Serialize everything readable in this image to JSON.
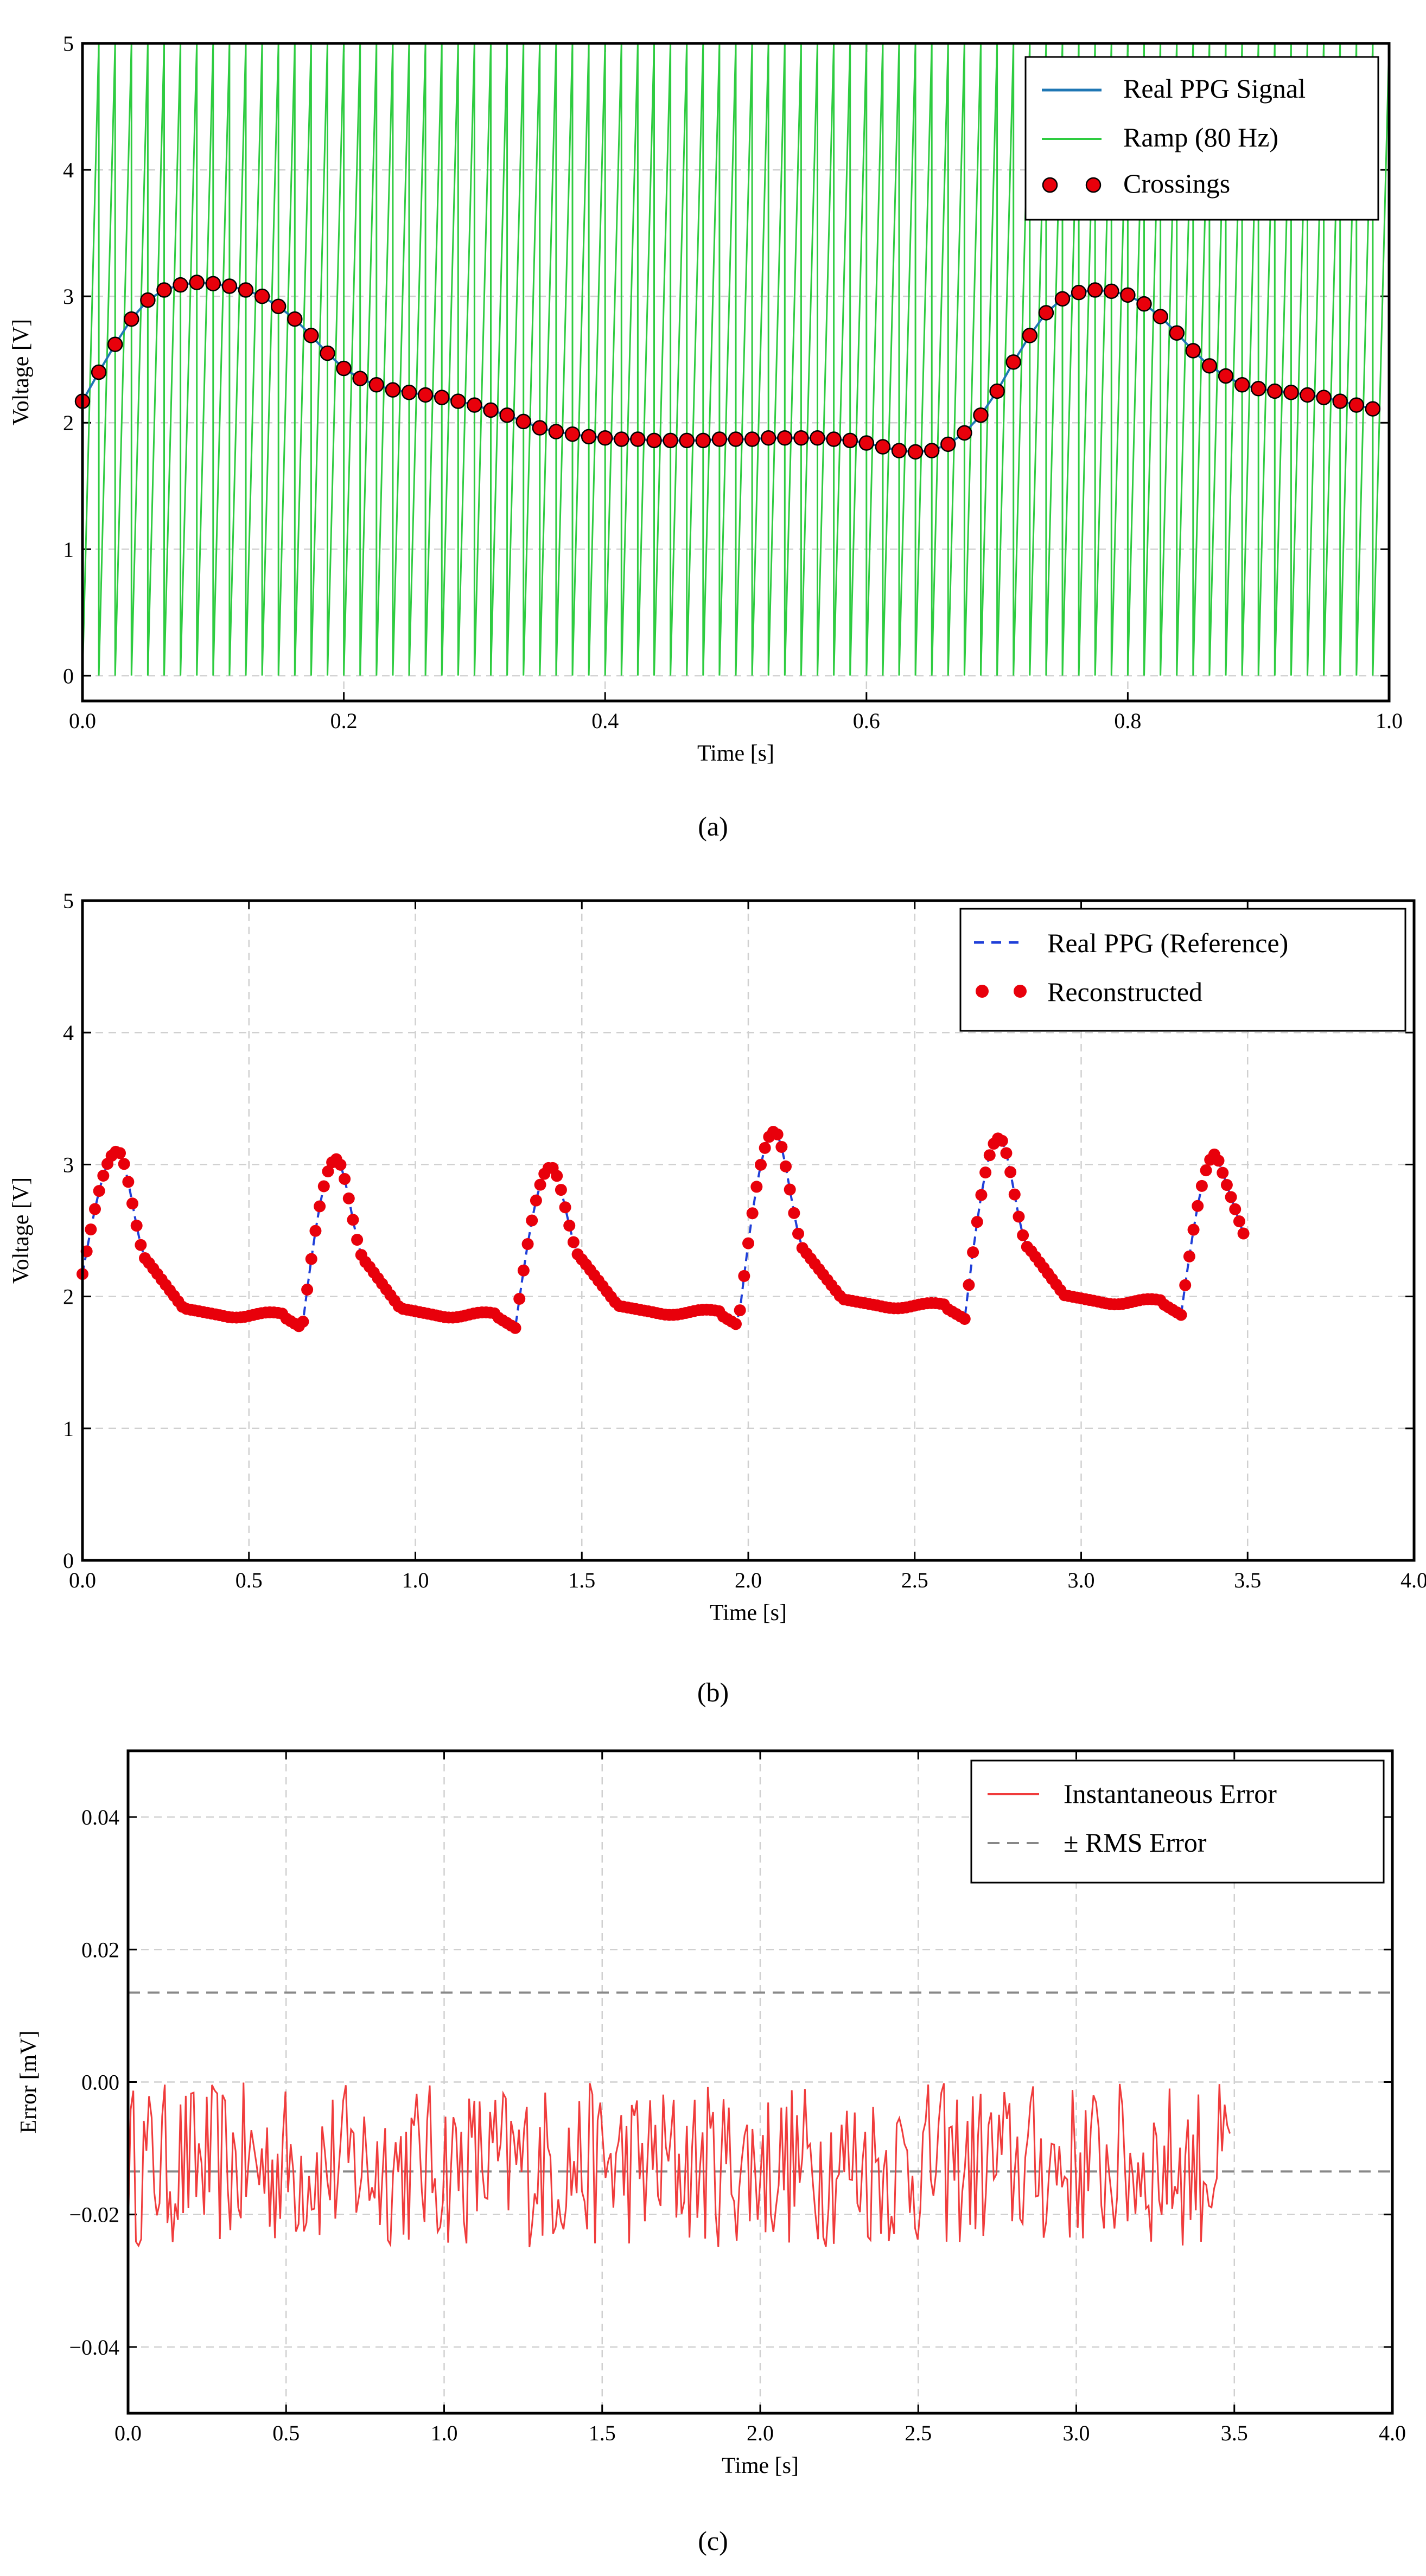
{
  "chart_data": [
    {
      "panel": "(a)",
      "type": "line",
      "xlabel": "Time [s]",
      "ylabel": "Voltage [V]",
      "xlim": [
        0.0,
        1.0
      ],
      "ylim": [
        -0.2,
        5.0
      ],
      "xticks": [
        0.0,
        0.2,
        0.4,
        0.6,
        0.8,
        1.0
      ],
      "xtick_labels": [
        "0.0",
        "0.2",
        "0.4",
        "0.6",
        "0.8",
        "1.0"
      ],
      "yticks": [
        0,
        1,
        2,
        3,
        4,
        5
      ],
      "ytick_labels": [
        "0",
        "1",
        "2",
        "3",
        "4",
        "5"
      ],
      "grid": true,
      "legend_position": "top-right",
      "colors": {
        "ppg": "#1f77b4",
        "ramp": "#2ecc40",
        "crossings": "#e8000b"
      },
      "series": [
        {
          "name": "Real PPG Signal",
          "kind": "line",
          "x": [
            0.0,
            0.0125,
            0.025,
            0.0375,
            0.05,
            0.0625,
            0.075,
            0.0875,
            0.1,
            0.1125,
            0.125,
            0.1375,
            0.15,
            0.1625,
            0.175,
            0.1875,
            0.2,
            0.2125,
            0.225,
            0.2375,
            0.25,
            0.2625,
            0.275,
            0.2875,
            0.3,
            0.3125,
            0.325,
            0.3375,
            0.35,
            0.3625,
            0.375,
            0.3875,
            0.4,
            0.4125,
            0.425,
            0.4375,
            0.45,
            0.4625,
            0.475,
            0.4875,
            0.5,
            0.5125,
            0.525,
            0.5375,
            0.55,
            0.5625,
            0.575,
            0.5875,
            0.6,
            0.6125,
            0.625,
            0.6375,
            0.65,
            0.6625,
            0.675,
            0.6875,
            0.7,
            0.7125,
            0.725,
            0.7375,
            0.75,
            0.7625,
            0.775,
            0.7875,
            0.8,
            0.8125,
            0.825,
            0.8375,
            0.85,
            0.8625,
            0.875,
            0.8875,
            0.9,
            0.9125,
            0.925,
            0.9375,
            0.95,
            0.9625,
            0.975,
            0.9875
          ],
          "y": [
            2.17,
            2.4,
            2.62,
            2.82,
            2.97,
            3.05,
            3.09,
            3.11,
            3.1,
            3.08,
            3.05,
            3.0,
            2.92,
            2.82,
            2.69,
            2.55,
            2.43,
            2.35,
            2.3,
            2.26,
            2.24,
            2.22,
            2.2,
            2.17,
            2.14,
            2.1,
            2.06,
            2.01,
            1.96,
            1.93,
            1.91,
            1.89,
            1.88,
            1.87,
            1.87,
            1.86,
            1.86,
            1.86,
            1.86,
            1.87,
            1.87,
            1.87,
            1.88,
            1.88,
            1.88,
            1.88,
            1.87,
            1.86,
            1.84,
            1.81,
            1.78,
            1.77,
            1.78,
            1.83,
            1.92,
            2.06,
            2.25,
            2.48,
            2.69,
            2.87,
            2.98,
            3.03,
            3.05,
            3.04,
            3.01,
            2.94,
            2.84,
            2.71,
            2.57,
            2.45,
            2.37,
            2.3,
            2.27,
            2.25,
            2.24,
            2.22,
            2.2,
            2.17,
            2.14,
            2.11
          ]
        },
        {
          "name": "Ramp (80 Hz)",
          "kind": "sawtooth",
          "frequency_hz": 80,
          "min": 0,
          "max": 5
        },
        {
          "name": "Crossings",
          "kind": "scatter",
          "same_points_as": "Real PPG Signal"
        }
      ],
      "legend": [
        "Real PPG Signal",
        "Ramp (80 Hz)",
        "Crossings"
      ]
    },
    {
      "panel": "(b)",
      "type": "line",
      "xlabel": "Time [s]",
      "ylabel": "Voltage [V]",
      "xlim": [
        0.0,
        4.0
      ],
      "ylim": [
        0,
        5
      ],
      "xticks": [
        0.0,
        0.5,
        1.0,
        1.5,
        2.0,
        2.5,
        3.0,
        3.5,
        4.0
      ],
      "xtick_labels": [
        "0.0",
        "0.5",
        "1.0",
        "1.5",
        "2.0",
        "2.5",
        "3.0",
        "3.5",
        "4.0"
      ],
      "yticks": [
        0,
        1,
        2,
        3,
        4,
        5
      ],
      "ytick_labels": [
        "0",
        "1",
        "2",
        "3",
        "4",
        "5"
      ],
      "grid": true,
      "legend_position": "top-right",
      "colors": {
        "reference": "#1f3fd8",
        "reconstructed": "#e8000b"
      },
      "beats": [
        {
          "start": 0.0,
          "end": 0.66,
          "peak": 3.1,
          "min": 1.76,
          "start_val": 2.17
        },
        {
          "start": 0.66,
          "end": 1.3,
          "peak": 3.04,
          "min": 1.76,
          "start_val": 1.76
        },
        {
          "start": 1.3,
          "end": 1.97,
          "peak": 2.98,
          "min": 1.78,
          "start_val": 1.76
        },
        {
          "start": 1.97,
          "end": 2.65,
          "peak": 3.25,
          "min": 1.83,
          "start_val": 1.79
        },
        {
          "start": 2.65,
          "end": 3.3,
          "peak": 3.2,
          "min": 1.86,
          "start_val": 1.83
        },
        {
          "start": 3.3,
          "end": 3.5,
          "peak": 3.08,
          "min": 1.86,
          "start_val": 1.86,
          "partial": true,
          "end_val": 2.4
        }
      ],
      "series": [
        {
          "name": "Real PPG (Reference)",
          "kind": "dashed-line",
          "x_range": [
            0.0,
            3.49
          ]
        },
        {
          "name": "Reconstructed",
          "kind": "scatter",
          "x_range": [
            0.0,
            3.49
          ]
        }
      ],
      "legend": [
        "Real PPG (Reference)",
        "Reconstructed"
      ]
    },
    {
      "panel": "(c)",
      "type": "line",
      "xlabel": "Time [s]",
      "ylabel": "Error [mV]",
      "xlim": [
        0.0,
        4.0
      ],
      "ylim": [
        -0.05,
        0.05
      ],
      "xticks": [
        0.0,
        0.5,
        1.0,
        1.5,
        2.0,
        2.5,
        3.0,
        3.5,
        4.0
      ],
      "xtick_labels": [
        "0.0",
        "0.5",
        "1.0",
        "1.5",
        "2.0",
        "2.5",
        "3.0",
        "3.5",
        "4.0"
      ],
      "yticks": [
        -0.04,
        -0.02,
        0.0,
        0.02,
        0.04
      ],
      "ytick_labels": [
        "−0.04",
        "−0.02",
        "0.00",
        "0.02",
        "0.04"
      ],
      "grid": true,
      "legend_position": "top-right",
      "colors": {
        "error": "#f03c3c",
        "rms": "#888888"
      },
      "rms_error": 0.0135,
      "error_range": [
        -0.025,
        0.0
      ],
      "error_mean": -0.013,
      "x_range": [
        0.0,
        3.49
      ],
      "series": [
        {
          "name": "Instantaneous Error",
          "kind": "line"
        },
        {
          "name": "± RMS Error",
          "kind": "dashed-hline",
          "values": [
            0.0135,
            -0.0135
          ]
        }
      ],
      "legend": [
        "Instantaneous Error",
        "± RMS Error"
      ]
    }
  ]
}
